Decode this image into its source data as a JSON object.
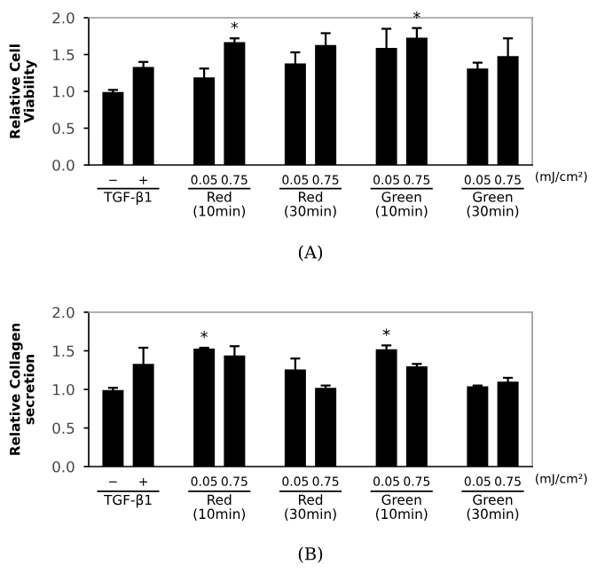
{
  "chart_data": [
    {
      "type": "bar",
      "title": "(A)",
      "ylabel": "Relative Cell\nViability",
      "categories": [
        "−",
        "+",
        "0.05",
        "0.75",
        "0.05",
        "0.75",
        "0.05",
        "0.75",
        "0.05",
        "0.75"
      ],
      "values": [
        0.99,
        1.33,
        1.19,
        1.67,
        1.38,
        1.63,
        1.59,
        1.73,
        1.31,
        1.48
      ],
      "errors": [
        0.03,
        0.07,
        0.12,
        0.05,
        0.15,
        0.16,
        0.26,
        0.13,
        0.08,
        0.24
      ],
      "value_labels": [
        null,
        null,
        null,
        "*",
        null,
        null,
        null,
        "*",
        null,
        null
      ],
      "color": "#000000",
      "ylim": [
        0,
        2
      ],
      "yticks": [
        {
          "value": 0,
          "label": "0.0"
        },
        {
          "value": 0.5,
          "label": "0.5"
        },
        {
          "value": 1,
          "label": "1.0"
        },
        {
          "value": 1.5,
          "label": "1.5"
        },
        {
          "value": 2,
          "label": "2.0"
        }
      ],
      "annotations": [
        "TGF-β1",
        "Red\n(10min)",
        "Red\n(30min)",
        "Green\n(10min)",
        "Green\n(30min)",
        "(mJ/cm²)"
      ]
    },
    {
      "type": "bar",
      "title": "(B)",
      "ylabel": "Relative Collagen\nsecretion",
      "categories": [
        "−",
        "+",
        "0.05",
        "0.75",
        "0.05",
        "0.75",
        "0.05",
        "0.75",
        "0.05",
        "0.75"
      ],
      "values": [
        0.99,
        1.33,
        1.53,
        1.44,
        1.26,
        1.02,
        1.52,
        1.3,
        1.04,
        1.1
      ],
      "errors": [
        0.03,
        0.21,
        0.01,
        0.12,
        0.14,
        0.03,
        0.05,
        0.03,
        0.01,
        0.05
      ],
      "value_labels": [
        null,
        null,
        "*",
        null,
        null,
        null,
        "*",
        null,
        null,
        null
      ],
      "color": "#000000",
      "ylim": [
        0,
        2
      ],
      "yticks": [
        {
          "value": 0,
          "label": "0.0"
        },
        {
          "value": 0.5,
          "label": "0.5"
        },
        {
          "value": 1,
          "label": "1.0"
        },
        {
          "value": 1.5,
          "label": "1.5"
        },
        {
          "value": 2,
          "label": "2.0"
        }
      ],
      "annotations": [
        "TGF-β1",
        "Red\n(10min)",
        "Red\n(30min)",
        "Green\n(10min)",
        "Green\n(30min)",
        "(mJ/cm²)"
      ]
    }
  ]
}
